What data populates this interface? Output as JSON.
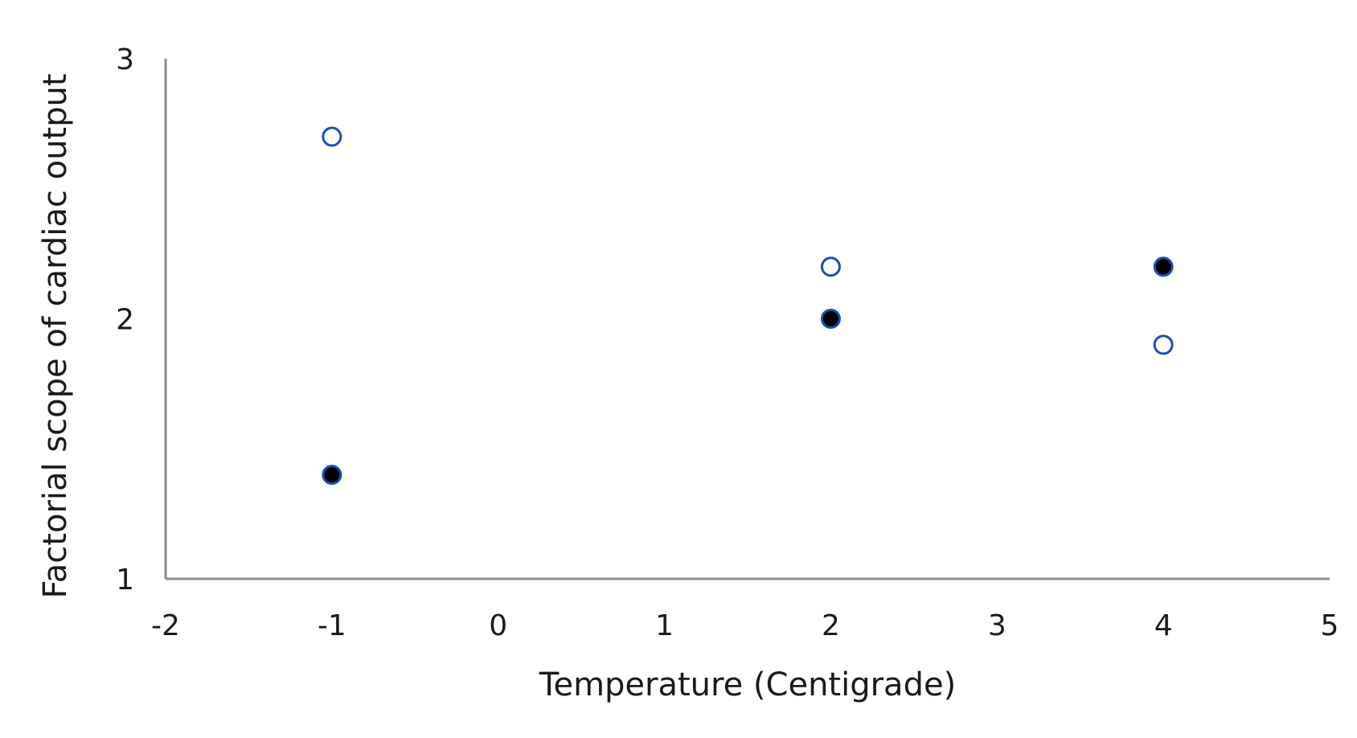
{
  "chart_data": {
    "type": "scatter",
    "title": "",
    "xlabel": "Temperature (Centigrade)",
    "ylabel": "Factorial scope of cardiac output",
    "xlim": [
      -2,
      5
    ],
    "ylim": [
      1,
      3
    ],
    "xticks": [
      "-2",
      "-1",
      "0",
      "1",
      "2",
      "3",
      "4",
      "5"
    ],
    "yticks": [
      "1",
      "2",
      "3"
    ],
    "grid": false,
    "legend": "none",
    "series": [
      {
        "marker": "open-circle",
        "color": "#1f4fb4",
        "points": [
          {
            "x": -1,
            "y": 2.7
          },
          {
            "x": 2,
            "y": 2.2
          },
          {
            "x": 4,
            "y": 1.9
          }
        ]
      },
      {
        "marker": "filled-circle",
        "color": "#000000",
        "edge_color": "#1f4fb4",
        "points": [
          {
            "x": -1,
            "y": 1.4
          },
          {
            "x": 2,
            "y": 2.0
          },
          {
            "x": 4,
            "y": 2.2
          }
        ]
      }
    ]
  }
}
